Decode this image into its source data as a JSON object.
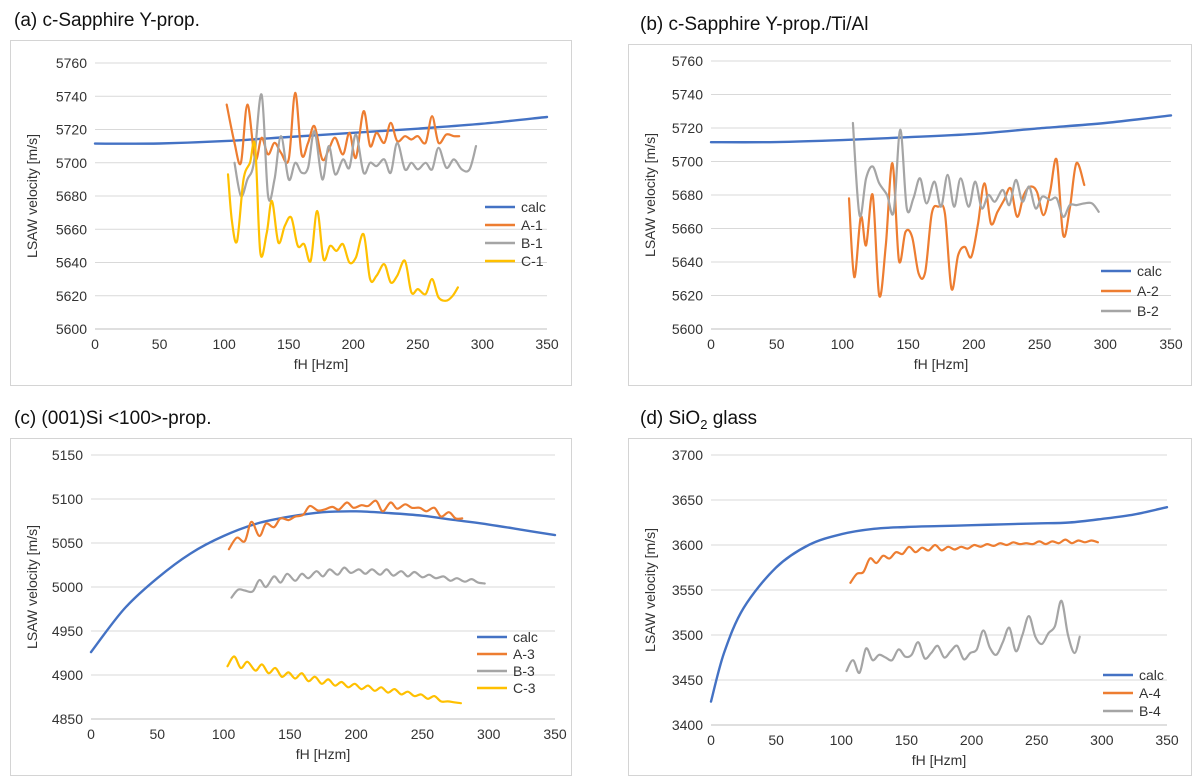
{
  "panels": [
    {
      "title_prefix": "(a) c-Sapphire Y-prop.",
      "title_sub": "",
      "title_suffix": ""
    },
    {
      "title_prefix": "(b) c-Sapphire Y-prop./Ti/Al",
      "title_sub": "",
      "title_suffix": ""
    },
    {
      "title_prefix": "(c) (001)Si <100>-prop.",
      "title_sub": "",
      "title_suffix": ""
    },
    {
      "title_prefix": "(d) SiO",
      "title_sub": "2",
      "title_suffix": " glass"
    }
  ],
  "colors": {
    "calc": "#4472C4",
    "A": "#ED7D31",
    "B": "#A5A5A5",
    "C": "#FFC000"
  },
  "chart_data": [
    {
      "type": "line",
      "xlabel": "fH [Hzm]",
      "ylabel": "LSAW velocity [m/s]",
      "xlim": [
        0,
        350
      ],
      "ylim": [
        5600,
        5760
      ],
      "xticks": [
        0,
        50,
        100,
        150,
        200,
        250,
        300,
        350
      ],
      "yticks": [
        5600,
        5620,
        5640,
        5660,
        5680,
        5700,
        5720,
        5740,
        5760
      ],
      "grid": true,
      "legend_position": "right",
      "series": [
        {
          "name": "calc",
          "color": "#4472C4",
          "x": [
            0,
            50,
            100,
            150,
            200,
            250,
            300,
            350
          ],
          "y": [
            5711.5,
            5711.6,
            5713,
            5715.5,
            5718,
            5720.5,
            5723.5,
            5727.5
          ]
        },
        {
          "name": "A-1",
          "color": "#ED7D31",
          "x": [
            102,
            108,
            113,
            118,
            124,
            129,
            134,
            139,
            144,
            150,
            155,
            160,
            165,
            170,
            176,
            181,
            186,
            192,
            197,
            202,
            208,
            213,
            218,
            224,
            229,
            234,
            240,
            245,
            250,
            256,
            261,
            266,
            272,
            278,
            282
          ],
          "y": [
            5735,
            5712,
            5700,
            5735,
            5702,
            5715,
            5705,
            5712,
            5706,
            5702,
            5742,
            5705,
            5712,
            5722,
            5702,
            5708,
            5715,
            5705,
            5718,
            5703,
            5731,
            5710,
            5718,
            5712,
            5724,
            5713,
            5716,
            5714,
            5716,
            5712,
            5728,
            5712,
            5717,
            5716,
            5716
          ]
        },
        {
          "name": "B-1",
          "color": "#A5A5A5",
          "x": [
            108,
            113,
            118,
            123,
            129,
            134,
            139,
            144,
            150,
            155,
            160,
            165,
            170,
            176,
            181,
            186,
            192,
            197,
            202,
            208,
            213,
            218,
            224,
            229,
            234,
            240,
            245,
            250,
            256,
            261,
            266,
            272,
            278,
            284,
            290,
            295
          ],
          "y": [
            5700,
            5680,
            5690,
            5700,
            5741,
            5680,
            5690,
            5716,
            5690,
            5700,
            5694,
            5697,
            5719,
            5690,
            5710,
            5693,
            5702,
            5697,
            5717,
            5694,
            5700,
            5698,
            5702,
            5694,
            5712,
            5696,
            5700,
            5696,
            5700,
            5696,
            5709,
            5697,
            5702,
            5696,
            5696,
            5710
          ]
        },
        {
          "name": "C-1",
          "color": "#FFC000",
          "x": [
            103,
            106,
            110,
            115,
            120,
            124,
            128,
            133,
            137,
            142,
            147,
            152,
            157,
            162,
            167,
            172,
            177,
            182,
            187,
            192,
            197,
            202,
            208,
            213,
            218,
            224,
            229,
            234,
            240,
            245,
            250,
            256,
            261,
            266,
            272,
            277,
            281
          ],
          "y": [
            5693,
            5665,
            5653,
            5690,
            5700,
            5710,
            5646,
            5658,
            5677,
            5652,
            5662,
            5667,
            5650,
            5651,
            5641,
            5671,
            5642,
            5650,
            5647,
            5651,
            5640,
            5643,
            5657,
            5630,
            5632,
            5639,
            5628,
            5632,
            5641,
            5622,
            5624,
            5621,
            5630,
            5619,
            5617,
            5620,
            5625
          ]
        }
      ]
    },
    {
      "type": "line",
      "xlabel": "fH [Hzm]",
      "ylabel": "LSAW velocity [m/s]",
      "xlim": [
        0,
        350
      ],
      "ylim": [
        5600,
        5760
      ],
      "xticks": [
        0,
        50,
        100,
        150,
        200,
        250,
        300,
        350
      ],
      "yticks": [
        5600,
        5620,
        5640,
        5660,
        5680,
        5700,
        5720,
        5740,
        5760
      ],
      "grid": true,
      "legend_position": "bottom-right",
      "series": [
        {
          "name": "calc",
          "color": "#4472C4",
          "x": [
            0,
            50,
            100,
            150,
            200,
            250,
            300,
            350
          ],
          "y": [
            5711.5,
            5711.6,
            5712.8,
            5714.5,
            5716.5,
            5719.8,
            5723,
            5727.5
          ]
        },
        {
          "name": "A-2",
          "color": "#ED7D31",
          "x": [
            105,
            109,
            114,
            118,
            123,
            128,
            133,
            138,
            143,
            148,
            153,
            158,
            163,
            168,
            173,
            178,
            183,
            188,
            193,
            198,
            203,
            208,
            213,
            218,
            223,
            228,
            233,
            238,
            243,
            248,
            253,
            258,
            263,
            268,
            273,
            278,
            284
          ],
          "y": [
            5678,
            5631,
            5667,
            5650,
            5680,
            5620,
            5650,
            5699,
            5641,
            5658,
            5655,
            5633,
            5634,
            5669,
            5673,
            5669,
            5624,
            5644,
            5649,
            5643,
            5662,
            5687,
            5663,
            5670,
            5677,
            5684,
            5667,
            5680,
            5685,
            5682,
            5668,
            5682,
            5701,
            5656,
            5672,
            5699,
            5686
          ]
        },
        {
          "name": "B-2",
          "color": "#A5A5A5",
          "x": [
            108,
            113,
            118,
            123,
            128,
            134,
            139,
            144,
            149,
            154,
            159,
            164,
            170,
            175,
            180,
            185,
            190,
            196,
            201,
            206,
            211,
            216,
            222,
            227,
            232,
            237,
            242,
            247,
            252,
            258,
            263,
            268,
            273,
            278,
            284,
            290,
            295
          ],
          "y": [
            5723,
            5668,
            5690,
            5697,
            5687,
            5680,
            5670,
            5719,
            5672,
            5678,
            5690,
            5675,
            5688,
            5673,
            5692,
            5673,
            5690,
            5673,
            5688,
            5672,
            5680,
            5676,
            5683,
            5674,
            5689,
            5676,
            5685,
            5672,
            5679,
            5677,
            5678,
            5667,
            5674,
            5674,
            5675,
            5675,
            5670
          ]
        }
      ]
    },
    {
      "type": "line",
      "xlabel": "fH [Hzm]",
      "ylabel": "LSAW velocity [m/s]",
      "xlim": [
        0,
        350
      ],
      "ylim": [
        4850,
        5150
      ],
      "xticks": [
        0,
        50,
        100,
        150,
        200,
        250,
        300,
        350
      ],
      "yticks": [
        4850,
        4900,
        4950,
        5000,
        5050,
        5100,
        5150
      ],
      "grid": true,
      "legend_position": "right",
      "series": [
        {
          "name": "calc",
          "color": "#4472C4",
          "x": [
            0,
            25,
            50,
            75,
            100,
            125,
            150,
            175,
            200,
            225,
            250,
            275,
            300,
            325,
            350
          ],
          "y": [
            4926,
            4975,
            5010,
            5038,
            5058,
            5072,
            5080,
            5085,
            5086,
            5084,
            5081,
            5076,
            5071,
            5065,
            5059
          ]
        },
        {
          "name": "A-3",
          "color": "#ED7D31",
          "x": [
            104,
            110,
            116,
            121,
            127,
            132,
            138,
            143,
            149,
            154,
            160,
            165,
            171,
            176,
            182,
            187,
            193,
            198,
            204,
            209,
            215,
            220,
            226,
            231,
            237,
            242,
            248,
            253,
            259,
            264,
            270,
            275,
            280
          ],
          "y": [
            5043,
            5056,
            5052,
            5074,
            5058,
            5072,
            5068,
            5078,
            5076,
            5080,
            5082,
            5092,
            5087,
            5088,
            5091,
            5088,
            5096,
            5090,
            5093,
            5092,
            5098,
            5086,
            5096,
            5089,
            5094,
            5090,
            5090,
            5086,
            5090,
            5080,
            5085,
            5078,
            5078
          ]
        },
        {
          "name": "B-3",
          "color": "#A5A5A5",
          "x": [
            106,
            111,
            116,
            122,
            127,
            132,
            138,
            143,
            148,
            154,
            159,
            164,
            170,
            175,
            180,
            186,
            191,
            196,
            202,
            207,
            212,
            218,
            223,
            228,
            234,
            239,
            244,
            250,
            255,
            260,
            266,
            271,
            276,
            282,
            287,
            292,
            297
          ],
          "y": [
            4988,
            4997,
            4996,
            4995,
            5008,
            5000,
            5012,
            5005,
            5015,
            5007,
            5015,
            5010,
            5018,
            5012,
            5020,
            5014,
            5022,
            5016,
            5020,
            5015,
            5020,
            5014,
            5020,
            5013,
            5018,
            5012,
            5017,
            5011,
            5014,
            5010,
            5012,
            5007,
            5010,
            5006,
            5009,
            5005,
            5004
          ]
        },
        {
          "name": "C-3",
          "color": "#FFC000",
          "x": [
            103,
            108,
            113,
            118,
            124,
            129,
            134,
            139,
            144,
            149,
            154,
            159,
            164,
            169,
            174,
            179,
            184,
            189,
            194,
            199,
            204,
            209,
            214,
            219,
            224,
            229,
            234,
            239,
            244,
            249,
            254,
            259,
            264,
            269,
            274,
            279
          ],
          "y": [
            4910,
            4921,
            4908,
            4915,
            4905,
            4912,
            4902,
            4908,
            4898,
            4903,
            4896,
            4902,
            4893,
            4898,
            4890,
            4895,
            4888,
            4892,
            4886,
            4890,
            4884,
            4888,
            4882,
            4886,
            4880,
            4884,
            4878,
            4881,
            4876,
            4878,
            4873,
            4876,
            4870,
            4870,
            4869,
            4868
          ]
        }
      ]
    },
    {
      "type": "line",
      "xlabel": "fH [Hzm]",
      "ylabel": "LSAW velocity [m/s]",
      "xlim": [
        0,
        350
      ],
      "ylim": [
        3400,
        3700
      ],
      "xticks": [
        0,
        50,
        100,
        150,
        200,
        250,
        300,
        350
      ],
      "yticks": [
        3400,
        3450,
        3500,
        3550,
        3600,
        3650,
        3700
      ],
      "grid": true,
      "legend_position": "bottom-right",
      "series": [
        {
          "name": "calc",
          "color": "#4472C4",
          "x": [
            0,
            10,
            25,
            50,
            75,
            100,
            125,
            150,
            175,
            200,
            225,
            250,
            275,
            300,
            325,
            350
          ],
          "y": [
            3426,
            3480,
            3530,
            3575,
            3600,
            3612,
            3618,
            3620,
            3621,
            3622,
            3623,
            3624,
            3625,
            3629,
            3634,
            3642
          ]
        },
        {
          "name": "A-4",
          "color": "#ED7D31",
          "x": [
            107,
            112,
            117,
            122,
            127,
            132,
            137,
            142,
            147,
            152,
            157,
            162,
            167,
            172,
            177,
            182,
            187,
            192,
            197,
            202,
            207,
            212,
            217,
            222,
            227,
            232,
            237,
            242,
            247,
            252,
            257,
            262,
            267,
            272,
            277,
            282,
            287,
            292,
            297
          ],
          "y": [
            3558,
            3568,
            3570,
            3585,
            3580,
            3588,
            3585,
            3592,
            3590,
            3598,
            3592,
            3597,
            3594,
            3600,
            3594,
            3598,
            3595,
            3598,
            3596,
            3600,
            3598,
            3601,
            3599,
            3602,
            3600,
            3603,
            3601,
            3602,
            3601,
            3604,
            3601,
            3604,
            3602,
            3606,
            3602,
            3605,
            3603,
            3605,
            3603
          ]
        },
        {
          "name": "B-4",
          "color": "#A5A5A5",
          "x": [
            104,
            109,
            114,
            119,
            124,
            129,
            134,
            139,
            144,
            149,
            154,
            159,
            164,
            169,
            174,
            179,
            184,
            189,
            194,
            199,
            204,
            209,
            214,
            219,
            224,
            229,
            234,
            239,
            244,
            249,
            254,
            259,
            264,
            269,
            274,
            279,
            283
          ],
          "y": [
            3460,
            3472,
            3458,
            3485,
            3472,
            3478,
            3475,
            3472,
            3484,
            3476,
            3478,
            3492,
            3474,
            3480,
            3488,
            3475,
            3482,
            3488,
            3473,
            3480,
            3484,
            3505,
            3486,
            3478,
            3492,
            3508,
            3482,
            3500,
            3521,
            3498,
            3490,
            3502,
            3510,
            3538,
            3500,
            3480,
            3498
          ]
        }
      ]
    }
  ]
}
